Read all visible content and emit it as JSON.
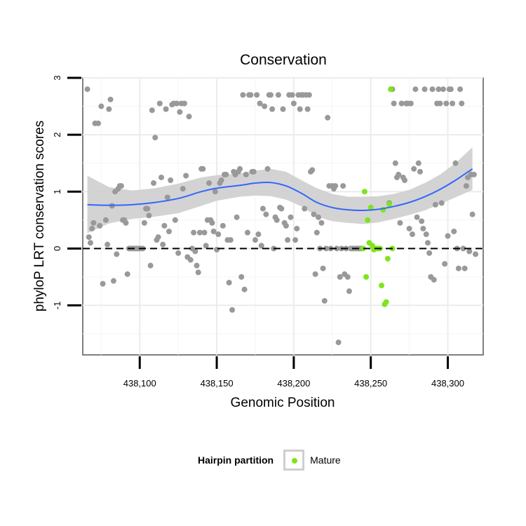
{
  "chart_data": {
    "type": "scatter",
    "title": "Conservation",
    "xlabel": "Genomic Position",
    "ylabel": "phyloP LRT conservation scores",
    "xlim": [
      438063,
      438323
    ],
    "ylim": [
      -1.87,
      3.0
    ],
    "x_ticks": [
      438100,
      438150,
      438200,
      438250,
      438300
    ],
    "x_tick_labels": [
      "438,100",
      "438,150",
      "438,200",
      "438,250",
      "438,300"
    ],
    "y_ticks": [
      -1,
      0,
      1,
      2,
      3
    ],
    "y_tick_labels": [
      "-1",
      "0",
      "1",
      "2",
      "3"
    ],
    "grid": true,
    "reference_line": {
      "y": 0,
      "style": "dashed"
    },
    "legend": {
      "title": "Hairpin partition",
      "position": "bottom",
      "entries": [
        "Mature"
      ]
    },
    "colors": {
      "other": "#999999",
      "mature": "#7fe51a",
      "smooth": "#3366ff",
      "band": "#d1d1d1"
    },
    "series": [
      {
        "name": "",
        "color": "#999999",
        "points": [
          [
            438066,
            2.8
          ],
          [
            438067,
            0.2
          ],
          [
            438068,
            0.1
          ],
          [
            438069,
            0.35
          ],
          [
            438070,
            0.45
          ],
          [
            438071,
            2.2
          ],
          [
            438073,
            2.2
          ],
          [
            438074,
            0.4
          ],
          [
            438075,
            2.5
          ],
          [
            438076,
            -0.62
          ],
          [
            438078,
            0.5
          ],
          [
            438079,
            0.07
          ],
          [
            438080,
            2.45
          ],
          [
            438081,
            2.62
          ],
          [
            438082,
            0.75
          ],
          [
            438083,
            -0.57
          ],
          [
            438084,
            1.0
          ],
          [
            438085,
            -0.1
          ],
          [
            438086,
            1.05
          ],
          [
            438087,
            1.1
          ],
          [
            438088,
            1.1
          ],
          [
            438089,
            0.5
          ],
          [
            438090,
            0.5
          ],
          [
            438091,
            0.45
          ],
          [
            438092,
            -0.45
          ],
          [
            438093,
            0.0
          ],
          [
            438094,
            0.0
          ],
          [
            438095,
            0.0
          ],
          [
            438096,
            0.0
          ],
          [
            438097,
            0.0
          ],
          [
            438098,
            0.0
          ],
          [
            438099,
            0.0
          ],
          [
            438100,
            0.0
          ],
          [
            438101,
            0.0
          ],
          [
            438102,
            0.0
          ],
          [
            438103,
            0.45
          ],
          [
            438104,
            0.7
          ],
          [
            438105,
            0.7
          ],
          [
            438106,
            0.58
          ],
          [
            438107,
            -0.3
          ],
          [
            438108,
            2.43
          ],
          [
            438109,
            1.15
          ],
          [
            438110,
            1.95
          ],
          [
            438111,
            0.15
          ],
          [
            438112,
            0.2
          ],
          [
            438113,
            2.55
          ],
          [
            438114,
            1.25
          ],
          [
            438115,
            0.07
          ],
          [
            438116,
            0.4
          ],
          [
            438117,
            2.45
          ],
          [
            438118,
            0.9
          ],
          [
            438119,
            0.3
          ],
          [
            438120,
            1.2
          ],
          [
            438121,
            2.53
          ],
          [
            438122,
            2.55
          ],
          [
            438123,
            0.5
          ],
          [
            438124,
            2.55
          ],
          [
            438125,
            -0.08
          ],
          [
            438126,
            2.4
          ],
          [
            438127,
            2.55
          ],
          [
            438128,
            1.05
          ],
          [
            438129,
            2.55
          ],
          [
            438130,
            1.28
          ],
          [
            438131,
            -0.15
          ],
          [
            438132,
            2.32
          ],
          [
            438133,
            -0.2
          ],
          [
            438134,
            0.0
          ],
          [
            438135,
            0.28
          ],
          [
            438136,
            -0.05
          ],
          [
            438137,
            -0.3
          ],
          [
            438138,
            -0.42
          ],
          [
            438139,
            0.28
          ],
          [
            438140,
            1.4
          ],
          [
            438141,
            1.4
          ],
          [
            438142,
            0.28
          ],
          [
            438143,
            0.05
          ],
          [
            438144,
            0.5
          ],
          [
            438145,
            1.15
          ],
          [
            438146,
            0.5
          ],
          [
            438147,
            0.45
          ],
          [
            438148,
            0.3
          ],
          [
            438149,
            1.0
          ],
          [
            438150,
            -0.02
          ],
          [
            438151,
            0.25
          ],
          [
            438152,
            1.15
          ],
          [
            438153,
            1.2
          ],
          [
            438154,
            0.4
          ],
          [
            438155,
            1.3
          ],
          [
            438156,
            1.3
          ],
          [
            438157,
            0.15
          ],
          [
            438158,
            -0.6
          ],
          [
            438159,
            0.15
          ],
          [
            438160,
            -1.08
          ],
          [
            438161,
            1.35
          ],
          [
            438162,
            1.3
          ],
          [
            438163,
            0.55
          ],
          [
            438164,
            1.35
          ],
          [
            438165,
            1.4
          ],
          [
            438166,
            -0.5
          ],
          [
            438167,
            2.7
          ],
          [
            438168,
            -0.72
          ],
          [
            438169,
            1.3
          ],
          [
            438170,
            0.28
          ],
          [
            438171,
            2.7
          ],
          [
            438172,
            2.7
          ],
          [
            438173,
            1.35
          ],
          [
            438174,
            1.35
          ],
          [
            438175,
            0.15
          ],
          [
            438176,
            2.7
          ],
          [
            438177,
            0.25
          ],
          [
            438178,
            2.55
          ],
          [
            438179,
            0.05
          ],
          [
            438180,
            0.7
          ],
          [
            438181,
            2.5
          ],
          [
            438182,
            0.6
          ],
          [
            438183,
            1.4
          ],
          [
            438184,
            2.7
          ],
          [
            438185,
            2.7
          ],
          [
            438186,
            2.45
          ],
          [
            438187,
            0.0
          ],
          [
            438188,
            0.55
          ],
          [
            438189,
            0.5
          ],
          [
            438190,
            2.7
          ],
          [
            438191,
            0.72
          ],
          [
            438192,
            0.7
          ],
          [
            438193,
            2.45
          ],
          [
            438194,
            0.45
          ],
          [
            438195,
            0.4
          ],
          [
            438196,
            0.15
          ],
          [
            438197,
            2.7
          ],
          [
            438198,
            0.55
          ],
          [
            438199,
            2.7
          ],
          [
            438200,
            2.55
          ],
          [
            438201,
            0.15
          ],
          [
            438202,
            0.35
          ],
          [
            438203,
            2.7
          ],
          [
            438204,
            2.45
          ],
          [
            438205,
            2.7
          ],
          [
            438206,
            2.7
          ],
          [
            438207,
            0.7
          ],
          [
            438208,
            2.7
          ],
          [
            438209,
            2.45
          ],
          [
            438210,
            2.7
          ],
          [
            438211,
            1.35
          ],
          [
            438212,
            1.38
          ],
          [
            438213,
            0.6
          ],
          [
            438214,
            -0.45
          ],
          [
            438215,
            0.28
          ],
          [
            438216,
            0.55
          ],
          [
            438217,
            0.0
          ],
          [
            438218,
            0.45
          ],
          [
            438219,
            -0.35
          ],
          [
            438220,
            -0.92
          ],
          [
            438221,
            0.0
          ],
          [
            438222,
            2.3
          ],
          [
            438223,
            1.1
          ],
          [
            438224,
            0.0
          ],
          [
            438225,
            1.1
          ],
          [
            438226,
            1.05
          ],
          [
            438227,
            1.1
          ],
          [
            438228,
            0.0
          ],
          [
            438229,
            -1.65
          ],
          [
            438230,
            -0.5
          ],
          [
            438231,
            0.0
          ],
          [
            438232,
            1.1
          ],
          [
            438233,
            -0.45
          ],
          [
            438234,
            0.0
          ],
          [
            438235,
            -0.5
          ],
          [
            438236,
            -0.75
          ],
          [
            438237,
            0.0
          ],
          [
            438238,
            0.0
          ],
          [
            438239,
            0.0
          ],
          [
            438240,
            0.0
          ],
          [
            438241,
            0.0
          ],
          [
            438242,
            0.0
          ],
          [
            438243,
            0.0
          ],
          [
            438244,
            0.0
          ],
          [
            438262,
            0.8
          ],
          [
            438263,
            2.8
          ],
          [
            438264,
            2.8
          ],
          [
            438265,
            2.55
          ],
          [
            438266,
            1.5
          ],
          [
            438267,
            1.25
          ],
          [
            438268,
            1.3
          ],
          [
            438269,
            0.45
          ],
          [
            438270,
            2.55
          ],
          [
            438271,
            1.25
          ],
          [
            438272,
            1.2
          ],
          [
            438273,
            2.55
          ],
          [
            438274,
            2.55
          ],
          [
            438275,
            0.35
          ],
          [
            438276,
            2.55
          ],
          [
            438277,
            0.25
          ],
          [
            438278,
            1.4
          ],
          [
            438279,
            2.8
          ],
          [
            438280,
            0.55
          ],
          [
            438281,
            1.5
          ],
          [
            438282,
            1.35
          ],
          [
            438283,
            0.48
          ],
          [
            438284,
            0.35
          ],
          [
            438285,
            2.8
          ],
          [
            438286,
            0.25
          ],
          [
            438287,
            0.1
          ],
          [
            438288,
            -0.08
          ],
          [
            438289,
            -0.5
          ],
          [
            438290,
            2.8
          ],
          [
            438291,
            -0.55
          ],
          [
            438292,
            0.77
          ],
          [
            438293,
            2.55
          ],
          [
            438294,
            2.8
          ],
          [
            438295,
            2.55
          ],
          [
            438296,
            0.8
          ],
          [
            438297,
            2.8
          ],
          [
            438298,
            -0.27
          ],
          [
            438299,
            2.55
          ],
          [
            438300,
            0.22
          ],
          [
            438301,
            2.8
          ],
          [
            438302,
            2.8
          ],
          [
            438303,
            2.55
          ],
          [
            438304,
            0.3
          ],
          [
            438305,
            1.5
          ],
          [
            438306,
            0.0
          ],
          [
            438307,
            -0.35
          ],
          [
            438308,
            2.8
          ],
          [
            438309,
            2.55
          ],
          [
            438310,
            0.0
          ],
          [
            438311,
            -0.35
          ],
          [
            438312,
            1.1
          ],
          [
            438313,
            1.25
          ],
          [
            438314,
            -0.05
          ],
          [
            438315,
            1.3
          ],
          [
            438316,
            0.6
          ],
          [
            438317,
            1.3
          ],
          [
            438318,
            -0.1
          ]
        ]
      },
      {
        "name": "Mature",
        "color": "#7fe51a",
        "points": [
          [
            438245,
            0.0
          ],
          [
            438246,
            1.0
          ],
          [
            438247,
            -0.5
          ],
          [
            438248,
            0.5
          ],
          [
            438249,
            0.1
          ],
          [
            438250,
            0.72
          ],
          [
            438251,
            0.05
          ],
          [
            438252,
            -0.02
          ],
          [
            438253,
            0.0
          ],
          [
            438254,
            0.0
          ],
          [
            438255,
            0.0
          ],
          [
            438256,
            0.0
          ],
          [
            438257,
            -0.65
          ],
          [
            438258,
            0.68
          ],
          [
            438259,
            -0.98
          ],
          [
            438260,
            -0.94
          ],
          [
            438261,
            -0.18
          ],
          [
            438262,
            0.78
          ],
          [
            438263,
            2.8
          ],
          [
            438264,
            0.0
          ]
        ]
      }
    ],
    "smooth": {
      "color": "#3366ff",
      "x": [
        438066,
        438080,
        438095,
        438110,
        438125,
        438140,
        438150,
        438165,
        438175,
        438185,
        438195,
        438205,
        438215,
        438225,
        438235,
        438245,
        438255,
        438265,
        438275,
        438285,
        438295,
        438305,
        438316
      ],
      "y": [
        0.77,
        0.76,
        0.77,
        0.81,
        0.88,
        1.0,
        1.06,
        1.11,
        1.15,
        1.16,
        1.1,
        0.97,
        0.81,
        0.72,
        0.68,
        0.67,
        0.69,
        0.74,
        0.81,
        0.91,
        1.04,
        1.2,
        1.4
      ],
      "lower": [
        0.27,
        0.44,
        0.52,
        0.56,
        0.62,
        0.75,
        0.84,
        0.91,
        0.93,
        0.92,
        0.86,
        0.74,
        0.56,
        0.48,
        0.45,
        0.43,
        0.46,
        0.52,
        0.59,
        0.67,
        0.78,
        0.9,
        1.03
      ],
      "upper": [
        1.28,
        1.08,
        1.02,
        1.06,
        1.14,
        1.25,
        1.29,
        1.32,
        1.37,
        1.4,
        1.35,
        1.2,
        1.06,
        0.96,
        0.91,
        0.91,
        0.92,
        0.96,
        1.03,
        1.15,
        1.3,
        1.5,
        1.78
      ]
    }
  }
}
